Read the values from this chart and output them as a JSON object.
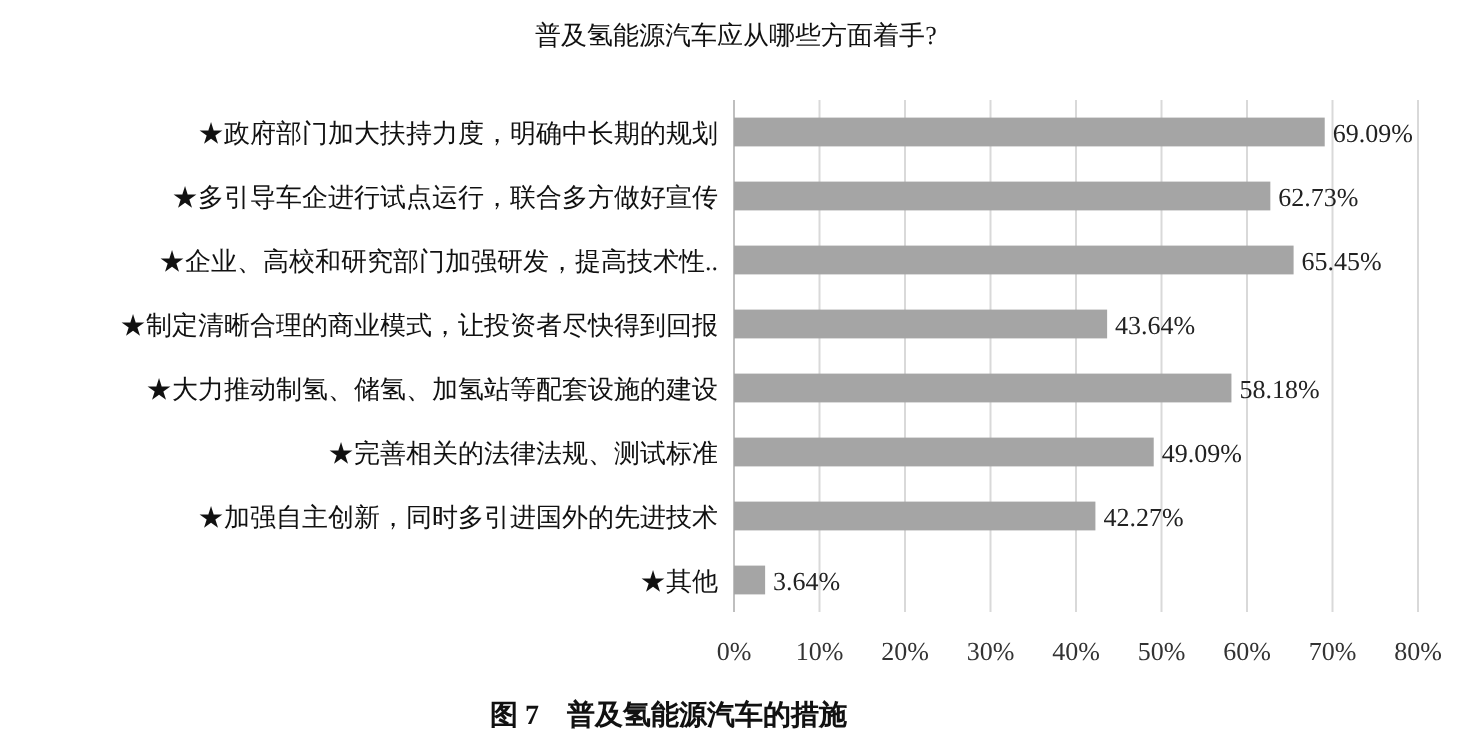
{
  "chart_data": {
    "type": "bar",
    "orientation": "horizontal",
    "title": "普及氢能源汽车应从哪些方面着手?",
    "categories": [
      "★政府部门加大扶持力度，明确中长期的规划",
      "★多引导车企进行试点运行，联合多方做好宣传",
      "★企业、高校和研究部门加强研发，提高技术性..",
      "★制定清晰合理的商业模式，让投资者尽快得到回报",
      "★大力推动制氢、储氢、加氢站等配套设施的建设",
      "★完善相关的法律法规、测试标准",
      "★加强自主创新，同时多引进国外的先进技术",
      "★其他"
    ],
    "values": [
      69.09,
      62.73,
      65.45,
      43.64,
      58.18,
      49.09,
      42.27,
      3.64
    ],
    "value_labels": [
      "69.09%",
      "62.73%",
      "65.45%",
      "43.64%",
      "58.18%",
      "49.09%",
      "42.27%",
      "3.64%"
    ],
    "color": "#a5a5a5",
    "xlim": [
      0,
      80
    ],
    "xticks": [
      {
        "value": 0,
        "label": "0%"
      },
      {
        "value": 10,
        "label": "10%"
      },
      {
        "value": 20,
        "label": "20%"
      },
      {
        "value": 30,
        "label": "30%"
      },
      {
        "value": 40,
        "label": "40%"
      },
      {
        "value": 50,
        "label": "50%"
      },
      {
        "value": 60,
        "label": "60%"
      },
      {
        "value": 70,
        "label": "70%"
      },
      {
        "value": 80,
        "label": "80%"
      }
    ],
    "grid": "x",
    "annotations": [
      "图 7　普及氢能源汽车的措施"
    ]
  }
}
